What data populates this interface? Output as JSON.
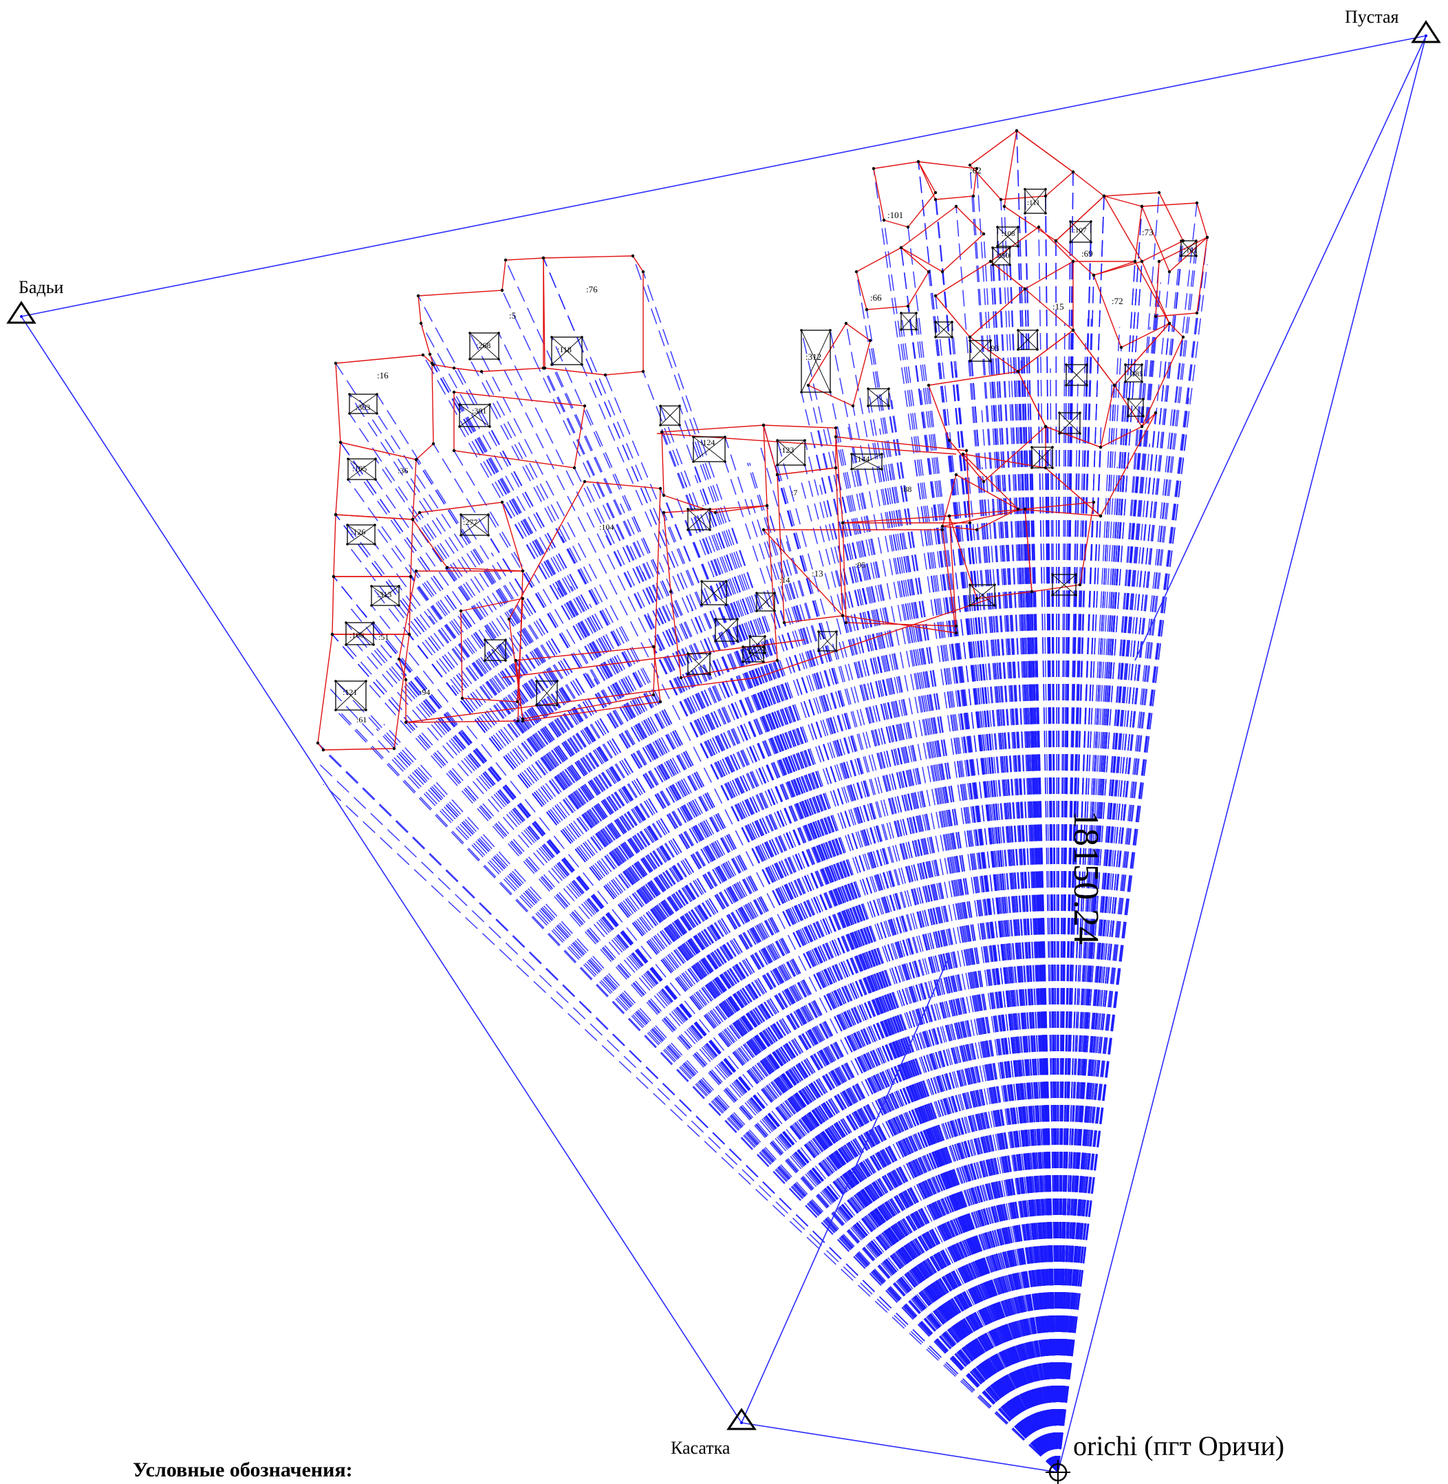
{
  "colors": {
    "rays": "#1a1aff",
    "network": "#2b2bff",
    "parcels": "#e01010",
    "structures": "#000000"
  },
  "base_station": {
    "label": "orichi (пгт Оричи)"
  },
  "control_points": [
    {
      "id": "badyi",
      "label": "Бадьи"
    },
    {
      "id": "pustaya",
      "label": "Пустая"
    },
    {
      "id": "kasatka",
      "label": "Касатка"
    }
  ],
  "baseline_label": "18150.24",
  "legend": {
    "title": "Условные обозначения:"
  },
  "parcels": [
    {
      "id": "p16",
      "label": ":16"
    },
    {
      "id": "p5",
      "label": ":5"
    },
    {
      "id": "p76",
      "label": ":76"
    },
    {
      "id": "p36",
      "label": ":36"
    },
    {
      "id": "p51",
      "label": ":51"
    },
    {
      "id": "p61",
      "label": ":61"
    },
    {
      "id": "p94",
      "label": ":94"
    },
    {
      "id": "p7",
      "label": ":7"
    },
    {
      "id": "p13",
      "label": ":13"
    },
    {
      "id": "p14",
      "label": ":14"
    },
    {
      "id": "p88",
      "label": ":88"
    },
    {
      "id": "p101",
      "label": ":101"
    },
    {
      "id": "p62",
      "label": ":62"
    },
    {
      "id": "p73",
      "label": ":73"
    },
    {
      "id": "p69",
      "label": ":69"
    },
    {
      "id": "p15",
      "label": ":15"
    },
    {
      "id": "p66",
      "label": ":66"
    },
    {
      "id": "p72",
      "label": ":72"
    },
    {
      "id": "p93",
      "label": ":93"
    },
    {
      "id": "p104",
      "label": ":104"
    },
    {
      "id": "p95",
      "label": ":95"
    }
  ],
  "structures": [
    {
      "id": "s303",
      "label": ":303"
    },
    {
      "id": "s268",
      "label": ":268"
    },
    {
      "id": "s118",
      "label": ":118"
    },
    {
      "id": "s301",
      "label": ":301"
    },
    {
      "id": "s105",
      "label": ":105"
    },
    {
      "id": "s277",
      "label": ":277"
    },
    {
      "id": "s126",
      "label": ":126"
    },
    {
      "id": "s313",
      "label": ":313"
    },
    {
      "id": "s106",
      "label": ":106"
    },
    {
      "id": "s121",
      "label": ":121"
    },
    {
      "id": "s312",
      "label": ":312"
    },
    {
      "id": "s124",
      "label": ":124"
    },
    {
      "id": "s123",
      "label": ":123"
    },
    {
      "id": "s144",
      "label": ":144"
    },
    {
      "id": "s111",
      "label": ":111"
    },
    {
      "id": "s107",
      "label": ":107"
    },
    {
      "id": "s102",
      "label": ":102"
    },
    {
      "id": "s108",
      "label": ":108"
    },
    {
      "id": "s290",
      "label": ":290"
    },
    {
      "id": "s185",
      "label": ":185"
    }
  ]
}
